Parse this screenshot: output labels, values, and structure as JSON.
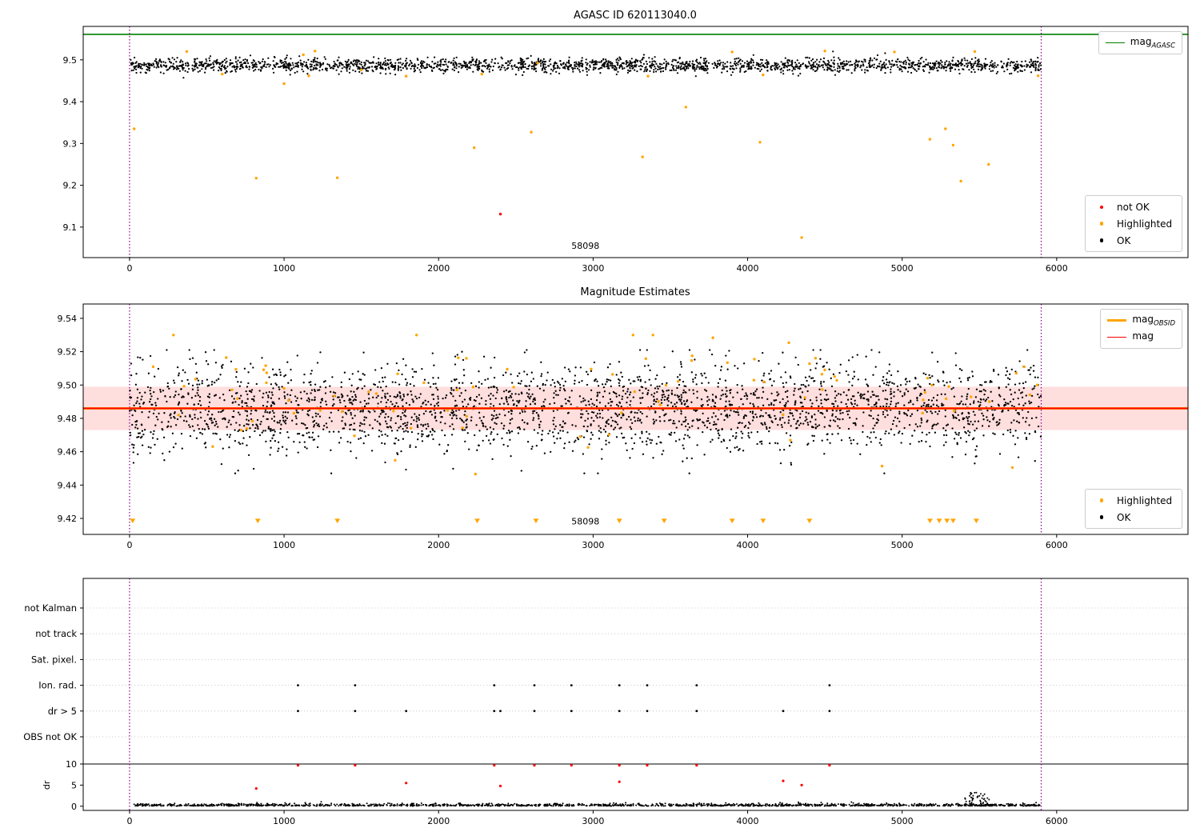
{
  "chart_data": [
    {
      "type": "scatter",
      "title": "AGASC ID 620113040.0",
      "xlim": [
        -300,
        6850
      ],
      "ylim": [
        9.027,
        9.58
      ],
      "xticks": [
        0,
        1000,
        2000,
        3000,
        4000,
        5000,
        6000
      ],
      "yticks": [
        "9.1",
        "9.2",
        "9.3",
        "9.4",
        "9.5"
      ],
      "hline": {
        "value": 9.561,
        "color": "#008000"
      },
      "vlines": {
        "xs": [
          0,
          5900
        ],
        "color": "#8b008b"
      },
      "ok_scatter": {
        "n": 2200,
        "x_min": 0,
        "x_max": 5900,
        "mean": 9.487,
        "std": 0.0085,
        "y_min": 9.452,
        "y_max": 9.522,
        "color": "#000000",
        "seed": 42
      },
      "highlight_color": "#ffa500",
      "not_ok_color": "#ff0000",
      "highlighted_points": [
        [
          30,
          9.335
        ],
        [
          370,
          9.52
        ],
        [
          600,
          9.466
        ],
        [
          820,
          9.217
        ],
        [
          1000,
          9.443
        ],
        [
          1125,
          9.512
        ],
        [
          1160,
          9.462
        ],
        [
          1200,
          9.521
        ],
        [
          1345,
          9.218
        ],
        [
          1500,
          9.476
        ],
        [
          1790,
          9.461
        ],
        [
          2230,
          9.29
        ],
        [
          2280,
          9.466
        ],
        [
          2600,
          9.327
        ],
        [
          2640,
          9.492
        ],
        [
          3320,
          9.268
        ],
        [
          3355,
          9.461
        ],
        [
          3600,
          9.387
        ],
        [
          3900,
          9.519
        ],
        [
          4080,
          9.303
        ],
        [
          4100,
          9.464
        ],
        [
          4350,
          9.075
        ],
        [
          4500,
          9.521
        ],
        [
          4950,
          9.519
        ],
        [
          5180,
          9.31
        ],
        [
          5280,
          9.335
        ],
        [
          5330,
          9.296
        ],
        [
          5380,
          9.21
        ],
        [
          5470,
          9.52
        ],
        [
          5560,
          9.25
        ],
        [
          5880,
          9.462
        ]
      ],
      "not_ok_points": [
        [
          2400,
          9.131
        ]
      ],
      "annotation": {
        "text": "58098",
        "x": 2950,
        "y": 9.048
      },
      "legend_lines": [
        {
          "label": "mag",
          "label_sub": "AGASC",
          "color": "#008000"
        }
      ],
      "legend_markers": [
        {
          "label": "not OK",
          "color": "#ff0000"
        },
        {
          "label": "Highlighted",
          "color": "#ffa500"
        },
        {
          "label": "OK",
          "color": "#000000"
        }
      ]
    },
    {
      "type": "scatter",
      "title": "Magnitude Estimates",
      "xlim": [
        -300,
        6850
      ],
      "ylim": [
        9.4104,
        9.5486
      ],
      "xticks": [
        0,
        1000,
        2000,
        3000,
        4000,
        5000,
        6000
      ],
      "yticks": [
        "9.42",
        "9.44",
        "9.46",
        "9.48",
        "9.50",
        "9.52",
        "9.54"
      ],
      "mag_line": {
        "value": 9.486,
        "color": "#ff0000",
        "band": [
          9.473,
          9.499
        ],
        "band_opacity": 0.13
      },
      "obsid_line": {
        "value": 9.486,
        "color": "#ffa500"
      },
      "vlines": {
        "xs": [
          0,
          5900
        ],
        "color": "#8b008b"
      },
      "ok_scatter": {
        "n": 2800,
        "x_min": 0,
        "x_max": 5900,
        "mean": 9.486,
        "std": 0.013,
        "y_min": 9.447,
        "y_max": 9.521,
        "color": "#000000",
        "seed": 7
      },
      "highlighted_scatter": {
        "n": 90,
        "x_min": 0,
        "x_max": 5900,
        "mean": 9.49,
        "std": 0.02,
        "y_min": 9.441,
        "y_max": 9.53,
        "color": "#ffa500",
        "seed": 13
      },
      "triangle_xs": [
        20,
        830,
        1345,
        2250,
        2630,
        3170,
        3460,
        3900,
        4100,
        4400,
        5180,
        5240,
        5290,
        5330,
        5480
      ],
      "triangle_y": 9.4185,
      "annotation": {
        "text": "58098",
        "x": 2950,
        "y": 9.4165
      },
      "legend_lines": [
        {
          "label": "mag",
          "label_sub": "OBSID",
          "color": "#ffa500"
        },
        {
          "label": "mag",
          "label_sub": "",
          "color": "#ff0000"
        }
      ],
      "legend_markers": [
        {
          "label": "Highlighted",
          "color": "#ffa500"
        },
        {
          "label": "OK",
          "color": "#000000"
        }
      ]
    },
    {
      "type": "flags",
      "xlim": [
        -300,
        6850
      ],
      "xticks": [
        0,
        1000,
        2000,
        3000,
        4000,
        5000,
        6000
      ],
      "categories": [
        "not Kalman",
        "not track",
        "Sat. pixel.",
        "Ion. rad.",
        "dr > 5",
        "OBS not OK"
      ],
      "dr_ticks": [
        "10",
        "5",
        "0"
      ],
      "dr_label": "dr",
      "threshold_line": 10,
      "vlines": {
        "xs": [
          0,
          5900
        ],
        "color": "#8b008b"
      },
      "flag_color": "#000000",
      "red_color": "#ff0000",
      "ion_rad_xs": [
        1090,
        1460,
        2360,
        2620,
        2860,
        3170,
        3350,
        3670,
        4530
      ],
      "dr5_xs": [
        1090,
        1460,
        1790,
        2360,
        2400,
        2620,
        2860,
        3170,
        3350,
        3670,
        4230,
        4530
      ],
      "red_points": [
        [
          820,
          4.2
        ],
        [
          1090,
          9.7
        ],
        [
          1460,
          9.7
        ],
        [
          1790,
          5.5
        ],
        [
          2360,
          9.7
        ],
        [
          2400,
          4.8
        ],
        [
          2620,
          9.7
        ],
        [
          2860,
          9.7
        ],
        [
          3170,
          9.7
        ],
        [
          3170,
          5.8
        ],
        [
          3350,
          9.7
        ],
        [
          3670,
          9.7
        ],
        [
          4230,
          6.0
        ],
        [
          4350,
          5.0
        ],
        [
          4530,
          9.7
        ]
      ],
      "dr_trace": {
        "n": 1500,
        "x_min": 20,
        "x_max": 5900,
        "seed": 99
      },
      "bump": {
        "x_min": 5400,
        "x_max": 5570,
        "n": 80,
        "max": 3.2,
        "seed": 5
      }
    }
  ]
}
